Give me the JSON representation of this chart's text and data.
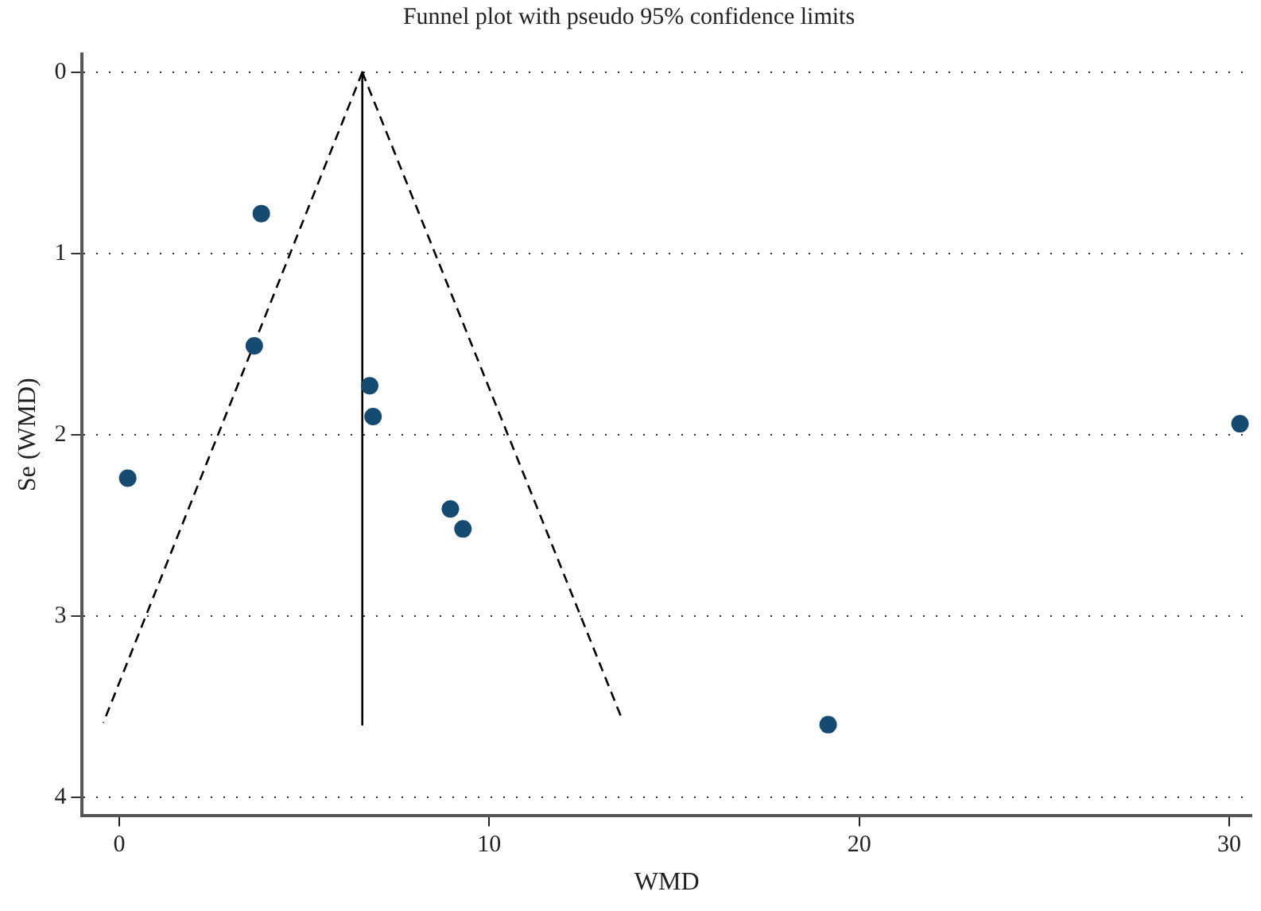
{
  "chart_data": {
    "type": "scatter",
    "title": "Funnel plot with pseudo 95% confidence limits",
    "xlabel": "WMD",
    "ylabel": "Se (WMD)",
    "xlim": [
      -1,
      30.6
    ],
    "xticks": [
      0,
      10,
      20,
      30
    ],
    "ylim": [
      4.1,
      -0.1
    ],
    "yticks": [
      0,
      1,
      2,
      3,
      4
    ],
    "grid": "y",
    "legend": false,
    "marker": "circle",
    "series": [
      {
        "type": "scatter",
        "color": "#154b70",
        "x": [
          3.84,
          3.65,
          6.77,
          6.86,
          0.23,
          8.95,
          9.29,
          19.16,
          30.29
        ],
        "values": [
          0.78,
          1.51,
          1.73,
          1.9,
          2.24,
          2.41,
          2.52,
          3.6,
          1.94
        ]
      },
      {
        "type": "line",
        "color": "#000000",
        "line_style": "solid",
        "marker": "none",
        "x": [
          6.57,
          6.57
        ],
        "values": [
          0,
          3.6
        ]
      },
      {
        "type": "line",
        "color": "#000000",
        "line_style": "dashed",
        "marker": "none",
        "x": [
          6.57,
          -0.43
        ],
        "values": [
          0,
          3.59
        ]
      },
      {
        "type": "line",
        "color": "#000000",
        "line_style": "dashed",
        "marker": "none",
        "x": [
          6.57,
          13.57
        ],
        "values": [
          0,
          3.56
        ]
      }
    ]
  }
}
